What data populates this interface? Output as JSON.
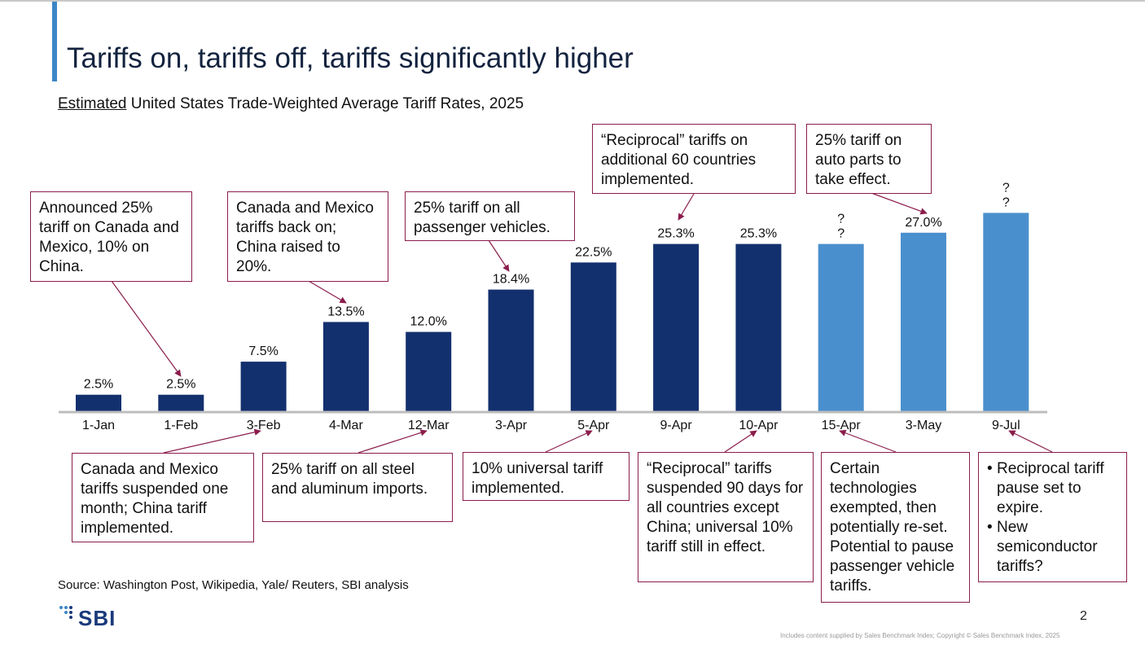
{
  "header": {
    "title": "Tariffs on, tariffs off, tariffs significantly higher",
    "subtitle_emph": "Estimated",
    "subtitle_rest": " United States Trade-Weighted Average Tariff Rates, 2025"
  },
  "colors": {
    "dark_bar": "#13306e",
    "light_bar": "#4a8fcd",
    "callout_border": "#8b1d4c",
    "accent": "#3d86c6"
  },
  "chart_data": {
    "type": "bar",
    "title": "Estimated United States Trade-Weighted Average Tariff Rates, 2025",
    "xlabel": "",
    "ylabel": "",
    "ylim": [
      0,
      30
    ],
    "grid": false,
    "categories": [
      "1-Jan",
      "1-Feb",
      "3-Feb",
      "4-Mar",
      "12-Mar",
      "3-Apr",
      "5-Apr",
      "9-Apr",
      "10-Apr",
      "15-Apr",
      "3-May",
      "9-Jul"
    ],
    "values": [
      2.5,
      2.5,
      7.5,
      13.5,
      12.0,
      18.4,
      22.5,
      25.3,
      25.3,
      25.3,
      27.0,
      30.0
    ],
    "labels": [
      "2.5%",
      "2.5%",
      "7.5%",
      "13.5%",
      "12.0%",
      "18.4%",
      "22.5%",
      "25.3%",
      "25.3%",
      "?\n?",
      "27.0%",
      "?\n?"
    ],
    "estimated": [
      false,
      false,
      false,
      false,
      false,
      false,
      false,
      false,
      false,
      true,
      true,
      true
    ]
  },
  "callouts": {
    "top_1feb": "Announced 25% tariff on Canada and Mexico, 10% on China.",
    "top_4mar": "Canada and Mexico tariffs back on; China raised to 20%.",
    "top_3apr": "25% tariff on all passenger vehicles.",
    "top_9apr": "“Reciprocal” tariffs on additional 60 countries implemented.",
    "top_3may": "25% tariff on auto parts to take effect.",
    "bottom_3feb": "Canada and Mexico tariffs suspended one month; China tariff implemented.",
    "bottom_12mar": "25% tariff on all steel and aluminum imports.",
    "bottom_5apr": "10% universal tariff implemented.",
    "bottom_10apr": "“Reciprocal” tariffs suspended 90 days for all countries except China; universal 10% tariff still in effect.",
    "bottom_15apr": "Certain technologies exempted, then potentially re-set. Potential to pause passenger vehicle tariffs.",
    "bottom_9jul_1": "Reciprocal tariff pause set to expire.",
    "bottom_9jul_2": "New semiconductor tariffs?"
  },
  "footer": {
    "source": "Source: Washington Post, Wikipedia, Yale/ Reuters, SBI analysis",
    "logo": "SBI",
    "page": "2",
    "copyright": "Includes content supplied by Sales Benchmark Index; Copyright © Sales Benchmark Index, 2025"
  }
}
